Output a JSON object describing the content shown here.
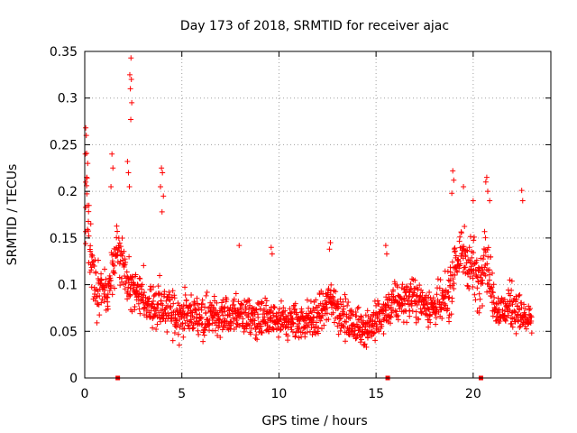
{
  "chart_data": {
    "type": "scatter",
    "title": "Day 173 of 2018, SRMTID for receiver ajac",
    "xlabel": "GPS time / hours",
    "ylabel": "SRMTID / TECUs",
    "xlim": [
      0,
      24
    ],
    "ylim": [
      0,
      0.35
    ],
    "xticks": [
      "0",
      "5",
      "10",
      "15",
      "20"
    ],
    "xtick_values": [
      0,
      5,
      10,
      15,
      20
    ],
    "yticks": [
      "0",
      "0.05",
      "0.1",
      "0.15",
      "0.2",
      "0.25",
      "0.3",
      "0.35"
    ],
    "ytick_values": [
      0,
      0.05,
      0.1,
      0.15,
      0.2,
      0.25,
      0.3,
      0.35
    ],
    "grid": true,
    "marker": "+",
    "series_color": "#ff0000",
    "marker_note": "dense ~2000 points; envelope described by control points",
    "trend": {
      "x": [
        0.0,
        0.1,
        0.25,
        0.5,
        0.8,
        1.2,
        1.6,
        1.8,
        2.0,
        2.2,
        2.4,
        2.6,
        3.0,
        3.5,
        4.0,
        4.5,
        5.0,
        6.0,
        7.0,
        8.0,
        9.0,
        10.0,
        11.0,
        12.0,
        12.7,
        13.0,
        13.5,
        14.0,
        14.5,
        15.0,
        15.5,
        16.0,
        16.5,
        17.0,
        17.5,
        18.0,
        18.5,
        18.8,
        19.0,
        19.3,
        19.6,
        20.0,
        20.3,
        20.6,
        20.9,
        21.2,
        21.5,
        22.0,
        22.5,
        23.0
      ],
      "y": [
        0.17,
        0.2,
        0.13,
        0.1,
        0.1,
        0.09,
        0.13,
        0.13,
        0.12,
        0.1,
        0.1,
        0.09,
        0.085,
        0.08,
        0.075,
        0.07,
        0.068,
        0.068,
        0.066,
        0.068,
        0.062,
        0.06,
        0.06,
        0.065,
        0.085,
        0.075,
        0.06,
        0.055,
        0.055,
        0.06,
        0.07,
        0.08,
        0.085,
        0.085,
        0.08,
        0.075,
        0.08,
        0.09,
        0.12,
        0.13,
        0.13,
        0.12,
        0.1,
        0.14,
        0.1,
        0.075,
        0.07,
        0.08,
        0.065,
        0.06
      ],
      "spread": [
        0.06,
        0.06,
        0.05,
        0.035,
        0.03,
        0.03,
        0.035,
        0.035,
        0.03,
        0.03,
        0.03,
        0.03,
        0.03,
        0.03,
        0.03,
        0.03,
        0.025,
        0.025,
        0.025,
        0.025,
        0.025,
        0.025,
        0.025,
        0.025,
        0.03,
        0.03,
        0.025,
        0.025,
        0.025,
        0.025,
        0.025,
        0.025,
        0.025,
        0.025,
        0.025,
        0.025,
        0.03,
        0.035,
        0.035,
        0.04,
        0.04,
        0.04,
        0.035,
        0.04,
        0.035,
        0.025,
        0.025,
        0.03,
        0.025,
        0.02
      ]
    },
    "outliers": [
      {
        "x": 0.05,
        "y": 0.268
      },
      {
        "x": 0.08,
        "y": 0.26
      },
      {
        "x": 0.03,
        "y": 0.24
      },
      {
        "x": 0.15,
        "y": 0.23
      },
      {
        "x": 0.1,
        "y": 0.215
      },
      {
        "x": 1.4,
        "y": 0.24
      },
      {
        "x": 1.45,
        "y": 0.225
      },
      {
        "x": 1.35,
        "y": 0.205
      },
      {
        "x": 2.2,
        "y": 0.232
      },
      {
        "x": 2.25,
        "y": 0.22
      },
      {
        "x": 2.3,
        "y": 0.205
      },
      {
        "x": 2.38,
        "y": 0.343
      },
      {
        "x": 2.32,
        "y": 0.325
      },
      {
        "x": 2.4,
        "y": 0.32
      },
      {
        "x": 2.35,
        "y": 0.31
      },
      {
        "x": 2.42,
        "y": 0.295
      },
      {
        "x": 2.37,
        "y": 0.277
      },
      {
        "x": 3.95,
        "y": 0.225
      },
      {
        "x": 4.0,
        "y": 0.22
      },
      {
        "x": 3.9,
        "y": 0.205
      },
      {
        "x": 4.05,
        "y": 0.195
      },
      {
        "x": 3.98,
        "y": 0.178
      },
      {
        "x": 7.95,
        "y": 0.142
      },
      {
        "x": 9.6,
        "y": 0.14
      },
      {
        "x": 9.65,
        "y": 0.133
      },
      {
        "x": 12.65,
        "y": 0.145
      },
      {
        "x": 12.6,
        "y": 0.138
      },
      {
        "x": 15.5,
        "y": 0.142
      },
      {
        "x": 15.55,
        "y": 0.133
      },
      {
        "x": 18.95,
        "y": 0.222
      },
      {
        "x": 19.0,
        "y": 0.212
      },
      {
        "x": 18.9,
        "y": 0.198
      },
      {
        "x": 19.5,
        "y": 0.205
      },
      {
        "x": 20.0,
        "y": 0.19
      },
      {
        "x": 20.7,
        "y": 0.215
      },
      {
        "x": 20.75,
        "y": 0.2
      },
      {
        "x": 20.65,
        "y": 0.21
      },
      {
        "x": 20.85,
        "y": 0.19
      },
      {
        "x": 22.5,
        "y": 0.201
      },
      {
        "x": 22.55,
        "y": 0.19
      }
    ],
    "gaps": [
      1.7,
      15.6,
      20.4
    ]
  }
}
